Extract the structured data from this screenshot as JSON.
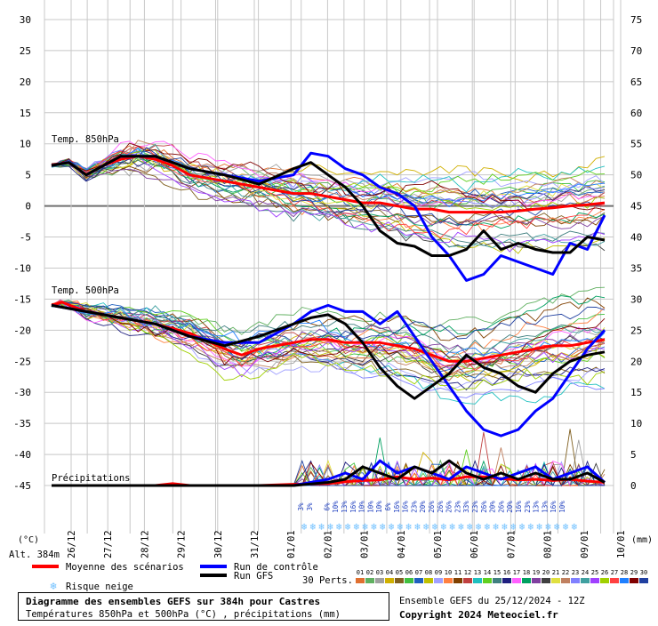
{
  "chart_data": {
    "type": "line",
    "title": "Diagramme des ensembles GEFS sur 384h pour Castres",
    "subtitle": "Températures 850hPa et 500hPa (°C) , précipitations (mm)",
    "run_label": "Ensemble GEFS du 25/12/2024 - 12Z",
    "copyright": "Copyright 2024 Meteociel.fr",
    "altitude_label": "Alt. 384m",
    "left_unit": "(°C)",
    "right_unit": "(mm)",
    "x_ticks": [
      "26/12",
      "27/12",
      "28/12",
      "29/12",
      "30/12",
      "31/12",
      "01/01",
      "02/01",
      "03/01",
      "04/01",
      "05/01",
      "06/01",
      "07/01",
      "08/01",
      "09/01",
      "10/01"
    ],
    "y_left_ticks": [
      "30",
      "25",
      "20",
      "15",
      "10",
      "5",
      "0",
      "-5",
      "-10",
      "-15",
      "-20",
      "-25",
      "-30",
      "-35",
      "-40",
      "-45"
    ],
    "y_left_range": [
      -45,
      30
    ],
    "y_right_ticks": [
      "75",
      "70",
      "65",
      "60",
      "55",
      "50",
      "45",
      "40",
      "35",
      "30",
      "25",
      "20",
      "15",
      "10",
      "5",
      "0"
    ],
    "y_right_range": [
      0,
      75
    ],
    "section_labels": {
      "t850": "Temp. 850hPa",
      "t500": "Temp. 500hPa",
      "precip": "Précipitations"
    },
    "x_time_range": [
      0,
      16
    ],
    "series": [
      {
        "name": "Moyenne des scénarios",
        "color": "#ff0000",
        "t850": [
          [
            0,
            6.5
          ],
          [
            0.5,
            7
          ],
          [
            1,
            5
          ],
          [
            1.5,
            6.5
          ],
          [
            2,
            7.5
          ],
          [
            2.5,
            8
          ],
          [
            3,
            7.5
          ],
          [
            3.5,
            6.5
          ],
          [
            4,
            5
          ],
          [
            4.5,
            4.5
          ],
          [
            5,
            4
          ],
          [
            5.5,
            3.5
          ],
          [
            6,
            3
          ],
          [
            6.5,
            2.5
          ],
          [
            7,
            2
          ],
          [
            7.5,
            2
          ],
          [
            8,
            1.5
          ],
          [
            8.5,
            1
          ],
          [
            9,
            0.5
          ],
          [
            9.5,
            0.5
          ],
          [
            10,
            0
          ],
          [
            10.5,
            -0.5
          ],
          [
            11,
            -0.5
          ],
          [
            11.5,
            -1
          ],
          [
            12,
            -1
          ],
          [
            12.5,
            -1
          ],
          [
            13,
            -1
          ],
          [
            13.5,
            -0.8
          ],
          [
            14,
            -0.5
          ],
          [
            14.5,
            -0.3
          ],
          [
            15,
            0
          ],
          [
            15.5,
            0.2
          ],
          [
            16,
            0.5
          ]
        ],
        "t500": [
          [
            0,
            -16
          ],
          [
            0.3,
            -15.5
          ],
          [
            1,
            -17
          ],
          [
            2,
            -18
          ],
          [
            3,
            -19
          ],
          [
            4,
            -20.5
          ],
          [
            5,
            -23
          ],
          [
            5.5,
            -24
          ],
          [
            6,
            -23
          ],
          [
            6.5,
            -22.5
          ],
          [
            7,
            -22
          ],
          [
            7.5,
            -21.5
          ],
          [
            8,
            -21.5
          ],
          [
            8.5,
            -22
          ],
          [
            9,
            -22
          ],
          [
            9.5,
            -22
          ],
          [
            10,
            -22.5
          ],
          [
            10.5,
            -23
          ],
          [
            11,
            -24
          ],
          [
            11.5,
            -25
          ],
          [
            12,
            -25
          ],
          [
            12.5,
            -24.5
          ],
          [
            13,
            -24
          ],
          [
            13.5,
            -23.5
          ],
          [
            14,
            -23
          ],
          [
            14.5,
            -22.5
          ],
          [
            15,
            -22.5
          ],
          [
            15.5,
            -22
          ],
          [
            16,
            -21.5
          ]
        ],
        "precip_mm": [
          [
            0,
            0
          ],
          [
            3,
            0
          ],
          [
            3.5,
            0.3
          ],
          [
            4,
            0
          ],
          [
            5,
            0
          ],
          [
            6,
            0
          ],
          [
            7,
            0.2
          ],
          [
            8,
            0.3
          ],
          [
            8.5,
            0.6
          ],
          [
            9,
            0.8
          ],
          [
            9.5,
            0.9
          ],
          [
            10,
            1.4
          ],
          [
            10.5,
            1
          ],
          [
            11,
            1.2
          ],
          [
            11.5,
            0.9
          ],
          [
            12,
            1.4
          ],
          [
            12.5,
            1.4
          ],
          [
            13,
            1.1
          ],
          [
            13.5,
            0.9
          ],
          [
            14,
            1
          ],
          [
            14.5,
            0.8
          ],
          [
            15,
            1
          ],
          [
            15.5,
            0.7
          ],
          [
            16,
            0.5
          ]
        ]
      },
      {
        "name": "Run de contrôle",
        "color": "#0000ff",
        "t850": [
          [
            0,
            6.5
          ],
          [
            0.5,
            7
          ],
          [
            1,
            5
          ],
          [
            2,
            8
          ],
          [
            3,
            8
          ],
          [
            4,
            6
          ],
          [
            5,
            5
          ],
          [
            6,
            4
          ],
          [
            7,
            5
          ],
          [
            7.5,
            8.5
          ],
          [
            8,
            8
          ],
          [
            8.5,
            6
          ],
          [
            9,
            5
          ],
          [
            9.5,
            3
          ],
          [
            10,
            2
          ],
          [
            10.5,
            0
          ],
          [
            11,
            -5
          ],
          [
            11.5,
            -8
          ],
          [
            12,
            -12
          ],
          [
            12.5,
            -11
          ],
          [
            13,
            -8
          ],
          [
            13.5,
            -9
          ],
          [
            14,
            -10
          ],
          [
            14.5,
            -11
          ],
          [
            15,
            -6
          ],
          [
            15.5,
            -7
          ],
          [
            16,
            -1.5
          ]
        ],
        "t500": [
          [
            0,
            -16
          ],
          [
            1,
            -17
          ],
          [
            2,
            -18
          ],
          [
            3,
            -19
          ],
          [
            4,
            -21
          ],
          [
            5,
            -22
          ],
          [
            6,
            -22
          ],
          [
            7,
            -19
          ],
          [
            7.5,
            -17
          ],
          [
            8,
            -16
          ],
          [
            8.5,
            -17
          ],
          [
            9,
            -17
          ],
          [
            9.5,
            -19
          ],
          [
            10,
            -17
          ],
          [
            10.5,
            -21
          ],
          [
            11,
            -25
          ],
          [
            11.5,
            -29
          ],
          [
            12,
            -33
          ],
          [
            12.5,
            -36
          ],
          [
            13,
            -37
          ],
          [
            13.5,
            -36
          ],
          [
            14,
            -33
          ],
          [
            14.5,
            -31
          ],
          [
            15,
            -27
          ],
          [
            15.5,
            -23
          ],
          [
            16,
            -20
          ]
        ],
        "precip_mm": [
          [
            0,
            0
          ],
          [
            7,
            0
          ],
          [
            8,
            1
          ],
          [
            8.5,
            2
          ],
          [
            9,
            1
          ],
          [
            9.5,
            4
          ],
          [
            10,
            2
          ],
          [
            10.5,
            3
          ],
          [
            11,
            2
          ],
          [
            11.5,
            1
          ],
          [
            12,
            3
          ],
          [
            12.5,
            2
          ],
          [
            13,
            1
          ],
          [
            13.5,
            2
          ],
          [
            14,
            3
          ],
          [
            14.5,
            1
          ],
          [
            15,
            2
          ],
          [
            15.5,
            3
          ],
          [
            16,
            0.5
          ]
        ]
      },
      {
        "name": "Run GFS",
        "color": "#000000",
        "t850": [
          [
            0,
            6.5
          ],
          [
            0.5,
            7
          ],
          [
            1,
            5
          ],
          [
            2,
            8
          ],
          [
            3,
            8
          ],
          [
            4,
            6
          ],
          [
            5,
            5
          ],
          [
            6,
            3.5
          ],
          [
            7,
            6
          ],
          [
            7.5,
            7
          ],
          [
            8,
            5
          ],
          [
            8.5,
            3
          ],
          [
            9,
            0
          ],
          [
            9.5,
            -4
          ],
          [
            10,
            -6
          ],
          [
            10.5,
            -6.5
          ],
          [
            11,
            -8
          ],
          [
            11.5,
            -8
          ],
          [
            12,
            -7
          ],
          [
            12.5,
            -4
          ],
          [
            13,
            -7
          ],
          [
            13.5,
            -6
          ],
          [
            14,
            -7
          ],
          [
            14.5,
            -7.5
          ],
          [
            15,
            -7.5
          ],
          [
            15.5,
            -5
          ],
          [
            16,
            -5.5
          ]
        ],
        "t500": [
          [
            0,
            -16
          ],
          [
            1,
            -17
          ],
          [
            2,
            -18
          ],
          [
            3,
            -19
          ],
          [
            4,
            -21
          ],
          [
            5,
            -22.5
          ],
          [
            6,
            -21
          ],
          [
            7,
            -19
          ],
          [
            7.5,
            -18
          ],
          [
            8,
            -17.5
          ],
          [
            8.5,
            -19
          ],
          [
            9,
            -22
          ],
          [
            9.5,
            -26
          ],
          [
            10,
            -29
          ],
          [
            10.5,
            -31
          ],
          [
            11,
            -29
          ],
          [
            11.5,
            -27
          ],
          [
            12,
            -24
          ],
          [
            12.5,
            -26
          ],
          [
            13,
            -27
          ],
          [
            13.5,
            -29
          ],
          [
            14,
            -30
          ],
          [
            14.5,
            -27
          ],
          [
            15,
            -25
          ],
          [
            15.5,
            -24
          ],
          [
            16,
            -23.5
          ]
        ],
        "precip_mm": [
          [
            0,
            0
          ],
          [
            7,
            0
          ],
          [
            8,
            0.5
          ],
          [
            8.5,
            1
          ],
          [
            9,
            3
          ],
          [
            9.5,
            2
          ],
          [
            10,
            1
          ],
          [
            10.5,
            3
          ],
          [
            11,
            2
          ],
          [
            11.5,
            4
          ],
          [
            12,
            2
          ],
          [
            12.5,
            1
          ],
          [
            13,
            2
          ],
          [
            13.5,
            1
          ],
          [
            14,
            2
          ],
          [
            14.5,
            1
          ],
          [
            15,
            1
          ],
          [
            15.5,
            2
          ],
          [
            16,
            0.5
          ]
        ]
      }
    ],
    "perturbations_label": "30 Perts.",
    "perturbation_ids": [
      "01",
      "02",
      "03",
      "04",
      "05",
      "06",
      "07",
      "08",
      "09",
      "10",
      "11",
      "12",
      "13",
      "14",
      "15",
      "16",
      "17",
      "18",
      "19",
      "20",
      "21",
      "22",
      "23",
      "24",
      "25",
      "26",
      "27",
      "28",
      "29",
      "30"
    ],
    "perturbation_colors": [
      "#e07030",
      "#60b060",
      "#a0a0a0",
      "#d0b000",
      "#806020",
      "#40c040",
      "#2060c0",
      "#c0c000",
      "#a0a0ff",
      "#ff8040",
      "#804000",
      "#c04040",
      "#20c0c0",
      "#60d020",
      "#408080",
      "#202080",
      "#ff60ff",
      "#00a060",
      "#8040a0",
      "#404040",
      "#e0e040",
      "#c08060",
      "#8080ff",
      "#40a0a0",
      "#a040ff",
      "#a0d000",
      "#ff4040",
      "#2080ff",
      "#800000",
      "#2040a0"
    ],
    "snow_risk_label": "Risque neige",
    "snow_risk": [
      {
        "x": 7.4,
        "pct": "3%"
      },
      {
        "x": 7.8,
        "pct": "3%"
      },
      {
        "x": 8.3,
        "pct": ""
      },
      {
        "x": 8.6,
        "pct": "6%"
      },
      {
        "x": 8.95,
        "pct": "10%"
      },
      {
        "x": 9.3,
        "pct": "13%"
      },
      {
        "x": 9.65,
        "pct": "16%"
      },
      {
        "x": 10.0,
        "pct": "10%"
      },
      {
        "x": 10.35,
        "pct": "10%"
      },
      {
        "x": 10.7,
        "pct": "10%"
      },
      {
        "x": 11.05,
        "pct": "6%"
      },
      {
        "x": 11.4,
        "pct": "16%"
      },
      {
        "x": 11.75,
        "pct": "16%"
      },
      {
        "x": 12.1,
        "pct": "23%"
      },
      {
        "x": 12.45,
        "pct": "20%"
      },
      {
        "x": 12.8,
        "pct": "26%"
      },
      {
        "x": 13.15,
        "pct": "26%"
      },
      {
        "x": 13.5,
        "pct": "26%"
      },
      {
        "x": 13.85,
        "pct": "23%"
      },
      {
        "x": 14.2,
        "pct": "33%"
      },
      {
        "x": 14.55,
        "pct": "23%"
      },
      {
        "x": 14.9,
        "pct": "26%"
      },
      {
        "x": 15.25,
        "pct": "20%"
      },
      {
        "x": 15.6,
        "pct": "26%"
      },
      {
        "x": 15.95,
        "pct": "20%"
      },
      {
        "x": 16.3,
        "pct": "16%"
      },
      {
        "x": 16.65,
        "pct": "23%"
      },
      {
        "x": 17.0,
        "pct": "13%"
      },
      {
        "x": 17.35,
        "pct": "13%"
      },
      {
        "x": 17.7,
        "pct": "16%"
      },
      {
        "x": 18.05,
        "pct": "10%"
      },
      {
        "x": 18.4,
        "pct": ""
      }
    ],
    "grid": true
  }
}
